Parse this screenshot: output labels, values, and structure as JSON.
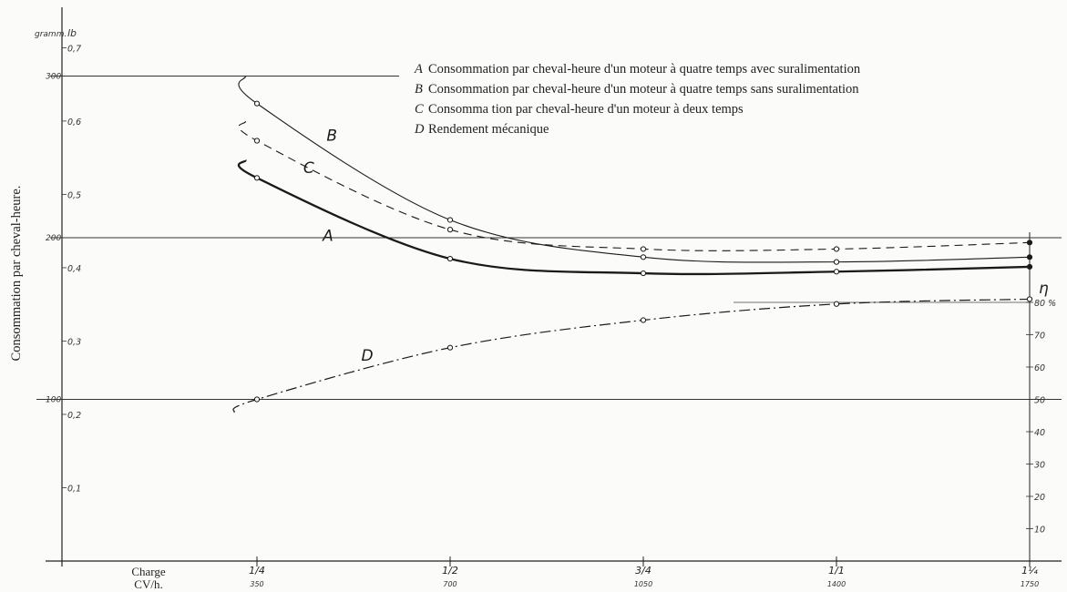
{
  "chart_data": {
    "type": "line",
    "ylabel": "Consommation par cheval-heure.",
    "xlabel_lines": [
      "Charge",
      "CV/h."
    ],
    "left_unit": "gramm.",
    "left_unit2": "lb",
    "right_axis_symbol": "η",
    "x": [
      0.25,
      0.5,
      0.75,
      1.0,
      1.25
    ],
    "x_tick_labels": [
      "1/4",
      "1/2",
      "3/4",
      "1/1",
      "1¼"
    ],
    "x_tick_sublabels": [
      "350",
      "700",
      "1050",
      "1400",
      "1750"
    ],
    "y_left_grams": {
      "ticks": [
        100,
        200,
        300
      ],
      "range": [
        0,
        350
      ]
    },
    "y_left_lb_ticks": [
      "0,1",
      "0,2",
      "0,3",
      "0,4",
      "0,5",
      "0,6",
      "0,7"
    ],
    "y_right_percent": {
      "ticks": [
        "10",
        "20",
        "30",
        "40",
        "50",
        "60",
        "70",
        "80 %"
      ],
      "range": [
        0,
        100
      ]
    },
    "gridlines_grams": [
      100,
      200,
      300
    ],
    "series": [
      {
        "name": "A",
        "values": [
          237,
          187,
          178,
          179,
          182
        ],
        "style": "thick"
      },
      {
        "name": "B",
        "values": [
          283,
          211,
          188,
          185,
          188
        ],
        "style": "thin"
      },
      {
        "name": "C",
        "values": [
          260,
          205,
          193,
          193,
          197
        ],
        "style": "dashed"
      },
      {
        "name": "D",
        "values": [
          50,
          66,
          74.5,
          79.5,
          81
        ],
        "style": "dashdot",
        "axis": "right"
      }
    ],
    "legend": [
      {
        "letter": "A",
        "text": "Consommation par cheval-heure d'un moteur à quatre temps avec suralimentation"
      },
      {
        "letter": "B",
        "text": "Consommation par cheval-heure d'un moteur à quatre temps sans suralimentation"
      },
      {
        "letter": "C",
        "text": "Consomma tion par cheval-heure d'un moteur à deux temps"
      },
      {
        "letter": "D",
        "text": "Rendement mécanique"
      }
    ],
    "legend_position": "top-right"
  }
}
